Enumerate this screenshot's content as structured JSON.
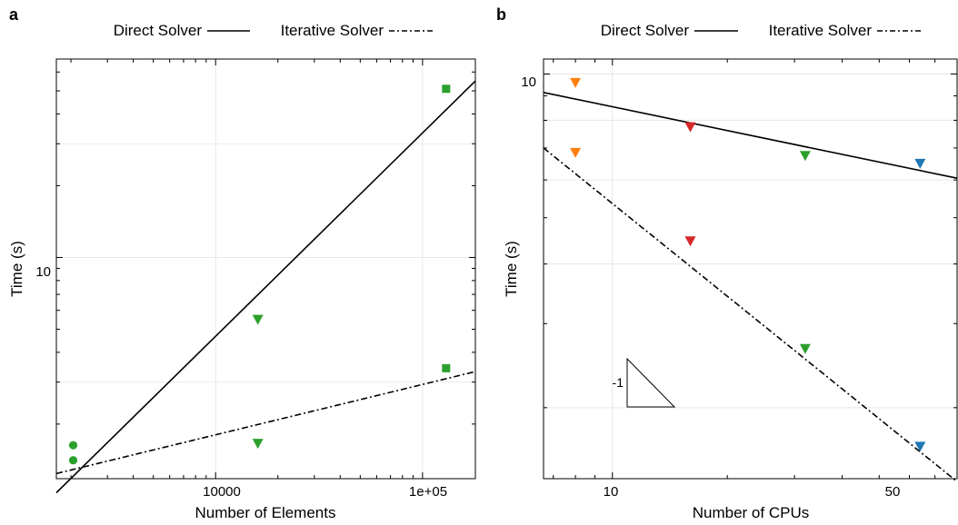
{
  "chart_data": [
    {
      "panel_label": "a",
      "type": "scatter",
      "xlabel": "Number of Elements",
      "ylabel": "Time (s)",
      "xscale": "log",
      "yscale": "log",
      "xlim": [
        1700,
        180000
      ],
      "ylim": [
        1.18,
        68
      ],
      "xticks": [
        {
          "value": 10000,
          "label": "10000"
        },
        {
          "value": 100000,
          "label": "1e+05"
        }
      ],
      "yticks": [
        {
          "value": 10,
          "label": "10"
        }
      ],
      "grid": true,
      "legend_position": "top",
      "legend": [
        {
          "label": "Direct Solver",
          "style": "solid"
        },
        {
          "label": "Iterative Solver",
          "style": "dashdot"
        }
      ],
      "series": [
        {
          "marker": "circle",
          "color": "#2ca02c",
          "points": [
            [
              2050,
              1.63
            ],
            [
              2050,
              1.41
            ]
          ]
        },
        {
          "marker": "triangle-down",
          "color": "#2ca02c",
          "points": [
            [
              16000,
              5.5
            ],
            [
              16000,
              1.66
            ]
          ]
        },
        {
          "marker": "square",
          "color": "#2ca02c",
          "points": [
            [
              130000,
              51
            ],
            [
              130000,
              3.43
            ]
          ]
        }
      ],
      "lines": [
        {
          "style": "solid",
          "points": [
            [
              1700,
              1.03
            ],
            [
              180000,
              55
            ]
          ]
        },
        {
          "style": "dashdot",
          "points": [
            [
              1700,
              1.24
            ],
            [
              180000,
              3.32
            ]
          ]
        }
      ]
    },
    {
      "panel_label": "b",
      "type": "scatter",
      "xlabel": "Number of CPUs",
      "ylabel": "Time (s)",
      "xscale": "log",
      "yscale": "log",
      "xlim": [
        6.6,
        80
      ],
      "ylim": [
        1.42,
        10.75
      ],
      "xticks": [
        {
          "value": 10,
          "label": "10"
        },
        {
          "value": 50,
          "label": "50"
        }
      ],
      "yticks": [
        {
          "value": 10,
          "label": "10"
        }
      ],
      "grid": true,
      "legend_position": "top",
      "legend": [
        {
          "label": "Direct Solver",
          "style": "solid"
        },
        {
          "label": "Iterative Solver",
          "style": "dashdot"
        }
      ],
      "series": [
        {
          "marker": "triangle-down",
          "color": "#ff7f0e",
          "points": [
            [
              8,
              9.6
            ],
            [
              8,
              6.85
            ]
          ]
        },
        {
          "marker": "triangle-down",
          "color": "#d62728",
          "points": [
            [
              16,
              7.75
            ],
            [
              16,
              4.47
            ]
          ]
        },
        {
          "marker": "triangle-down",
          "color": "#2ca02c",
          "points": [
            [
              32,
              6.75
            ],
            [
              32,
              2.66
            ]
          ]
        },
        {
          "marker": "triangle-down",
          "color": "#1f77b4",
          "points": [
            [
              64,
              6.5
            ],
            [
              64,
              1.66
            ]
          ]
        }
      ],
      "lines": [
        {
          "style": "solid",
          "points": [
            [
              6.6,
              9.15
            ],
            [
              80,
              6.05
            ]
          ]
        },
        {
          "style": "dashdot",
          "points": [
            [
              6.6,
              7.0
            ],
            [
              80,
              1.4
            ]
          ]
        }
      ],
      "annotation": {
        "text": "-1",
        "shape": "slope-triangle"
      }
    }
  ]
}
